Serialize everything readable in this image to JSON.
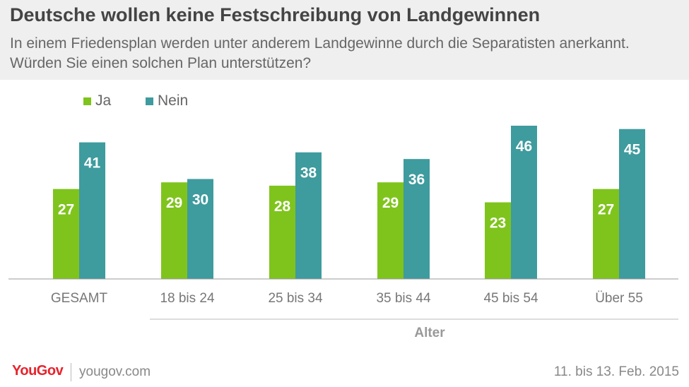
{
  "title": "Deutsche wollen keine Festschreibung von Landgewinnen",
  "subtitle": "In einem Friedensplan werden unter anderem Landgewinne durch die Separatisten anerkannt. Würden Sie einen solchen Plan unterstützen?",
  "colors": {
    "ja": "#7fc41c",
    "nein": "#3e9b9e",
    "axis": "#999999",
    "tick_text": "#777777",
    "label_text": "#ffffff"
  },
  "chart_data": {
    "type": "bar",
    "categories": [
      "GESAMT",
      "18 bis 24",
      "25 bis 34",
      "35 bis 44",
      "45 bis 54",
      "Über 55"
    ],
    "series": [
      {
        "name": "Ja",
        "values": [
          27,
          29,
          28,
          29,
          23,
          27
        ]
      },
      {
        "name": "Nein",
        "values": [
          41,
          30,
          38,
          36,
          46,
          45
        ]
      }
    ],
    "group_label": "Alter",
    "ylim": [
      0,
      46
    ],
    "legend_position": "top-left",
    "data_labels": true
  },
  "footer": {
    "brand": "YouGov",
    "url": "yougov.com",
    "date": "11. bis 13. Feb. 2015"
  }
}
